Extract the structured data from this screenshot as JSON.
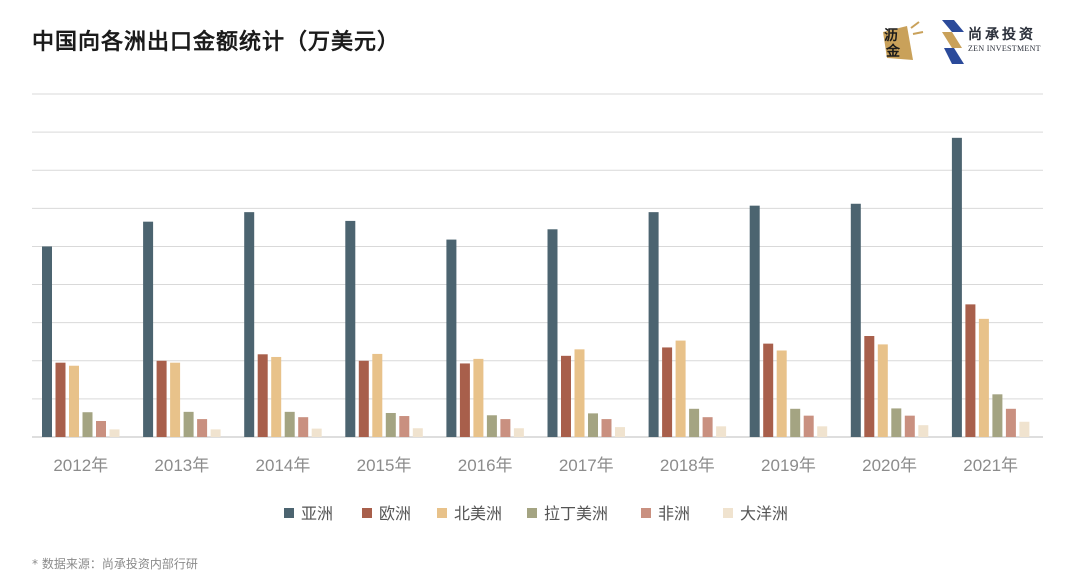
{
  "header": {
    "title": "中国向各洲出口金额统计（万美元）"
  },
  "logos": {
    "li_jin": {
      "text": "沥金",
      "icon": "li-jin-logo",
      "color": "#c9a15a"
    },
    "zen": {
      "cn": "尚承投资",
      "en": "ZEN INVESTMENT",
      "icon": "zen-investment-logo"
    }
  },
  "footer": {
    "source": "* 数据来源：尚承投资内部行研"
  },
  "chart_data": {
    "type": "bar",
    "title": "中国向各洲出口金额统计（万美元）",
    "xlabel": "",
    "ylabel": "",
    "ylim": [
      0,
      9
    ],
    "y_tick_labels_shown": false,
    "grid": true,
    "legend_position": "bottom",
    "categories": [
      "2012年",
      "2013年",
      "2014年",
      "2015年",
      "2016年",
      "2017年",
      "2018年",
      "2019年",
      "2020年",
      "2021年"
    ],
    "series": [
      {
        "name": "亚洲",
        "color": "#4c6470",
        "values": [
          5.0,
          5.65,
          5.9,
          5.67,
          5.18,
          5.45,
          5.9,
          6.07,
          6.12,
          7.85
        ]
      },
      {
        "name": "欧洲",
        "color": "#a85f4b",
        "values": [
          1.95,
          2.0,
          2.17,
          2.0,
          1.93,
          2.13,
          2.35,
          2.45,
          2.65,
          3.48
        ]
      },
      {
        "name": "北美洲",
        "color": "#e8c28a",
        "values": [
          1.87,
          1.95,
          2.1,
          2.18,
          2.05,
          2.3,
          2.53,
          2.27,
          2.43,
          3.1
        ]
      },
      {
        "name": "拉丁美洲",
        "color": "#a4a482",
        "values": [
          0.65,
          0.66,
          0.66,
          0.63,
          0.57,
          0.62,
          0.74,
          0.74,
          0.75,
          1.12
        ]
      },
      {
        "name": "非洲",
        "color": "#c99080",
        "values": [
          0.42,
          0.47,
          0.52,
          0.55,
          0.47,
          0.47,
          0.52,
          0.56,
          0.56,
          0.74
        ]
      },
      {
        "name": "大洋洲",
        "color": "#f0e3cf",
        "values": [
          0.2,
          0.2,
          0.22,
          0.23,
          0.23,
          0.26,
          0.28,
          0.28,
          0.31,
          0.4
        ]
      }
    ]
  }
}
